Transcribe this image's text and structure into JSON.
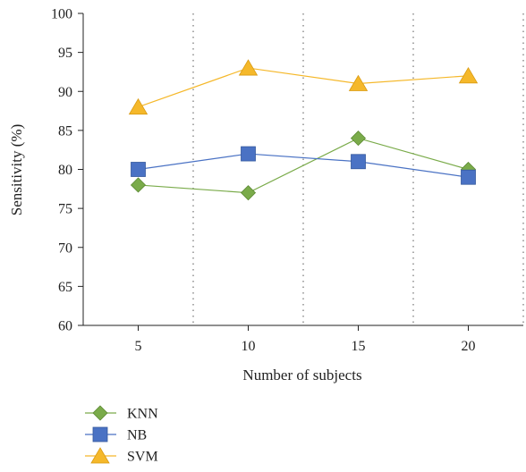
{
  "chart_data": {
    "type": "line",
    "title": "",
    "xlabel": "Number of subjects",
    "ylabel": "Sensitivity (%)",
    "categories": [
      "5",
      "10",
      "15",
      "20"
    ],
    "ylim": [
      60,
      100
    ],
    "yticks": [
      "60",
      "65",
      "70",
      "75",
      "80",
      "85",
      "90",
      "95",
      "100"
    ],
    "grid": "vertical dotted separators between categories",
    "legend_position": "bottom-left",
    "series": [
      {
        "name": "KNN",
        "values": [
          78,
          77,
          84,
          80
        ],
        "color": "#7aab4a",
        "marker": "diamond"
      },
      {
        "name": "NB",
        "values": [
          80,
          82,
          81,
          79
        ],
        "color": "#4a72c4",
        "marker": "square"
      },
      {
        "name": "SVM",
        "values": [
          88,
          93,
          91,
          92
        ],
        "color": "#f5b82a",
        "marker": "triangle"
      }
    ]
  }
}
